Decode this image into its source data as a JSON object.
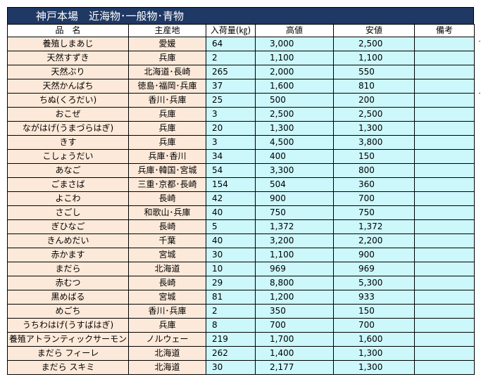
{
  "title": "神戸本場　近海物･一般物･青物",
  "headers": {
    "name": "品　名",
    "origin": "主産地",
    "quantity": "入荷量(㎏)",
    "high": "高値",
    "low": "安値",
    "note": "備考"
  },
  "rows": [
    {
      "name": "養殖しまあじ",
      "origin": "愛媛",
      "quantity": "64",
      "high": "3,000",
      "low": "2,500",
      "note": ""
    },
    {
      "name": "天然すずき",
      "origin": "兵庫",
      "quantity": "2",
      "high": "1,100",
      "low": "1,100",
      "note": ""
    },
    {
      "name": "天然ぶり",
      "origin": "北海道･長崎",
      "quantity": "265",
      "high": "2,000",
      "low": "550",
      "note": ""
    },
    {
      "name": "天然かんぱち",
      "origin": "徳島･福岡･兵庫",
      "quantity": "37",
      "high": "1,600",
      "low": "810",
      "note": ""
    },
    {
      "name": "ちぬ(くろだい)",
      "origin": "香川･兵庫",
      "quantity": "25",
      "high": "500",
      "low": "200",
      "note": ""
    },
    {
      "name": "おこぜ",
      "origin": "兵庫",
      "quantity": "3",
      "high": "2,500",
      "low": "2,500",
      "note": ""
    },
    {
      "name": "ながはげ(うまづらはぎ)",
      "origin": "兵庫",
      "quantity": "20",
      "high": "1,300",
      "low": "1,300",
      "note": ""
    },
    {
      "name": "きす",
      "origin": "兵庫",
      "quantity": "3",
      "high": "4,500",
      "low": "3,800",
      "note": ""
    },
    {
      "name": "こしょうだい",
      "origin": "兵庫･香川",
      "quantity": "34",
      "high": "400",
      "low": "150",
      "note": ""
    },
    {
      "name": "あなご",
      "origin": "兵庫･韓国･宮城",
      "quantity": "54",
      "high": "3,300",
      "low": "800",
      "note": ""
    },
    {
      "name": "ごまさば",
      "origin": "三重･京都･長崎",
      "quantity": "154",
      "high": "504",
      "low": "360",
      "note": ""
    },
    {
      "name": "よこわ",
      "origin": "長崎",
      "quantity": "42",
      "high": "900",
      "low": "700",
      "note": ""
    },
    {
      "name": "さごし",
      "origin": "和歌山･兵庫",
      "quantity": "40",
      "high": "750",
      "low": "750",
      "note": ""
    },
    {
      "name": "ぎひなご",
      "origin": "長崎",
      "quantity": "5",
      "high": "1,372",
      "low": "1,372",
      "note": ""
    },
    {
      "name": "きんめだい",
      "origin": "千葉",
      "quantity": "40",
      "high": "3,200",
      "low": "2,200",
      "note": ""
    },
    {
      "name": "赤かます",
      "origin": "宮城",
      "quantity": "30",
      "high": "1,100",
      "low": "900",
      "note": ""
    },
    {
      "name": "まだら",
      "origin": "北海道",
      "quantity": "10",
      "high": "969",
      "low": "969",
      "note": ""
    },
    {
      "name": "赤むつ",
      "origin": "長崎",
      "quantity": "29",
      "high": "8,800",
      "low": "5,300",
      "note": ""
    },
    {
      "name": "黒めばる",
      "origin": "宮城",
      "quantity": "81",
      "high": "1,200",
      "low": "933",
      "note": ""
    },
    {
      "name": "めごち",
      "origin": "香川･兵庫",
      "quantity": "2",
      "high": "350",
      "low": "150",
      "note": ""
    },
    {
      "name": "うちわはげ(うすばはぎ)",
      "origin": "兵庫",
      "quantity": "8",
      "high": "700",
      "low": "700",
      "note": ""
    },
    {
      "name": "養殖アトランティックサーモン",
      "origin": "ノルウェー",
      "quantity": "219",
      "high": "1,700",
      "low": "1,600",
      "note": ""
    },
    {
      "name": "まだら フィーレ",
      "origin": "北海道",
      "quantity": "262",
      "high": "1,400",
      "low": "1,300",
      "note": ""
    },
    {
      "name": "まだら スキミ",
      "origin": "北海道",
      "quantity": "30",
      "high": "2,177",
      "low": "1,300",
      "note": ""
    }
  ]
}
